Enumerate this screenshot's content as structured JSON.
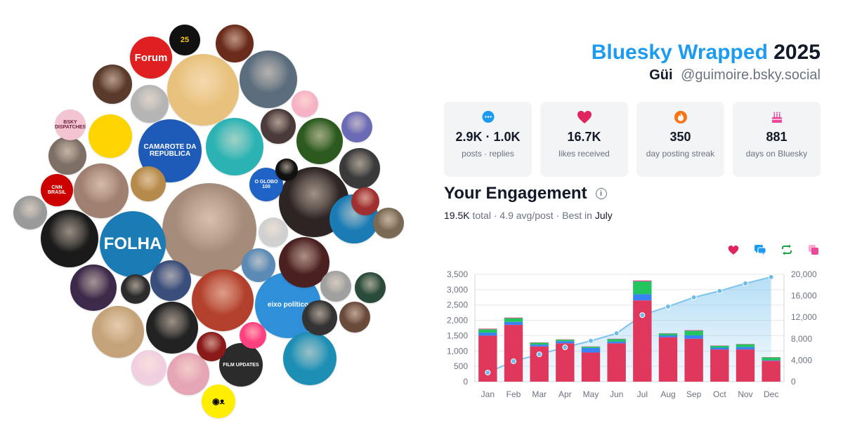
{
  "header": {
    "brand": "Bluesky Wrapped",
    "year": "2025",
    "display_name": "Güi",
    "handle": "@guimoire.bsky.social"
  },
  "stats": [
    {
      "icon": "speech-bubble-icon",
      "color": "#1d9bf0",
      "value": "2.9K · 1.0K",
      "label": "posts · replies"
    },
    {
      "icon": "heart-icon",
      "color": "#e0245e",
      "value": "16.7K",
      "label": "likes received"
    },
    {
      "icon": "flame-icon",
      "color": "#f97316",
      "value": "350",
      "label": "day posting streak"
    },
    {
      "icon": "cake-icon",
      "color": "#ec4899",
      "value": "881",
      "label": "days on Bluesky"
    }
  ],
  "engagement": {
    "title": "Your Engagement",
    "total": "19.5K",
    "total_word": "total",
    "avg": "· 4.9 avg/post · Best in",
    "best_month": "July"
  },
  "legend": [
    {
      "icon": "heart-icon",
      "color": "#e0245e"
    },
    {
      "icon": "reply-icon",
      "color": "#1d9bf0"
    },
    {
      "icon": "repost-icon",
      "color": "#16a34a"
    },
    {
      "icon": "quote-icon",
      "color": "#ec4899"
    }
  ],
  "bubbles": [
    {
      "name": "forum-logo",
      "label": "Forum",
      "color": "#e02020",
      "text": "#ffffff"
    },
    {
      "name": "25-logo",
      "label": "25",
      "color": "#111111",
      "text": "#f5c518"
    },
    {
      "name": "cnn-logo",
      "label": "CNN BRASIL",
      "color": "#cc0000",
      "text": "#ffffff"
    },
    {
      "name": "camarote-logo",
      "label": "CAMAROTE DA REPÚBLICA",
      "color": "#1e5bb8",
      "text": "#ffffff"
    },
    {
      "name": "oglobo-logo",
      "label": "O GLOBO 100",
      "color": "#1f63c6",
      "text": "#ffffff"
    },
    {
      "name": "folha-logo",
      "label": "FOLHA",
      "color": "#1a7bb5",
      "text": "#ffffff"
    },
    {
      "name": "eixo-logo",
      "label": "eixo político",
      "color": "#2f8fd8",
      "text": "#ffffff"
    },
    {
      "name": "film-updates-logo",
      "label": "FILM UPDATES",
      "color": "#2b2b2b",
      "text": "#ffffff"
    },
    {
      "name": "fish-logo",
      "label": "◉ᴥ",
      "color": "#ffee00",
      "text": "#000000"
    },
    {
      "name": "duck-avatar",
      "label": "",
      "color": "#ffd400",
      "text": "#000000"
    },
    {
      "name": "bsky-sticker",
      "label": "BSKY DISPATCHES",
      "color": "#f3c5d3",
      "text": "#6b1d3a"
    }
  ],
  "chart_data": {
    "type": "bar",
    "categories": [
      "Jan",
      "Feb",
      "Mar",
      "Apr",
      "May",
      "Jun",
      "Jul",
      "Aug",
      "Sep",
      "Oct",
      "Nov",
      "Dec"
    ],
    "series": [
      {
        "values": [
          1500,
          1850,
          1150,
          1250,
          950,
          1250,
          2650,
          1450,
          1400,
          1050,
          1050,
          680
        ]
      },
      {
        "values": [
          100,
          100,
          60,
          70,
          150,
          60,
          200,
          60,
          110,
          60,
          80,
          20
        ]
      },
      {
        "values": [
          110,
          120,
          60,
          50,
          40,
          80,
          420,
          60,
          150,
          60,
          90,
          90
        ]
      },
      {
        "values": [
          20,
          20,
          10,
          10,
          10,
          10,
          30,
          10,
          20,
          10,
          10,
          10
        ]
      }
    ],
    "cumulative_line": [
      1700,
      3800,
      5100,
      6400,
      7600,
      9000,
      12400,
      14000,
      15700,
      16900,
      18300,
      19500
    ],
    "ylim": [
      0,
      3500
    ],
    "yticks": [
      "0",
      "500",
      "1,000",
      "1,500",
      "2,000",
      "2,500",
      "3,000",
      "3,500"
    ],
    "y2lim": [
      0,
      20000
    ],
    "y2ticks": [
      "0",
      "4,000",
      "8,000",
      "12,000",
      "16,000",
      "20,000"
    ]
  }
}
